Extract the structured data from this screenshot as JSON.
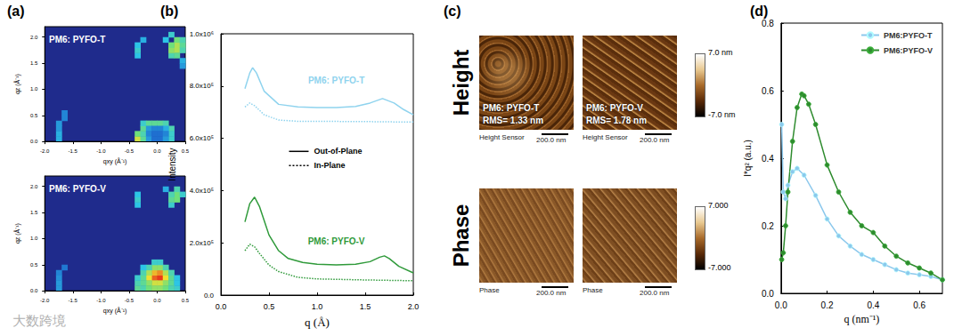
{
  "watermark": "大数跨境",
  "chart_data": [
    {
      "type": "heatmap",
      "panel": "(a)",
      "title": "PM6: PYFO-T",
      "xlabel": "qxy (Å⁻¹)",
      "ylabel": "qz (Å⁻¹)",
      "xlim": [
        -2,
        0.5
      ],
      "ylim": [
        0,
        2.2
      ],
      "xticks": [
        {
          "value": -2,
          "label": "-2.0"
        },
        -1.5,
        {
          "value": -1,
          "label": "-1.0"
        },
        -0.5,
        {
          "value": 0,
          "label": "0.0"
        },
        0.5
      ],
      "yticks": [
        {
          "value": 0,
          "label": "0.0"
        },
        0.5,
        {
          "value": 1,
          "label": "1.0"
        },
        1.5,
        {
          "value": 2,
          "label": "2.0"
        }
      ],
      "grid": false,
      "cell_size": 0.1,
      "clim": [
        0,
        1
      ],
      "cells": [
        [
          -0.4,
          0,
          0.75
        ],
        [
          -0.4,
          0.1,
          0.6
        ],
        [
          -0.3,
          0,
          0.55
        ],
        [
          -0.3,
          0.1,
          0.5
        ],
        [
          -0.3,
          0.2,
          0.55
        ],
        [
          -0.3,
          0.3,
          0.45
        ],
        [
          -0.2,
          0.3,
          0.55
        ],
        [
          -0.1,
          0.3,
          0.55
        ],
        [
          0,
          0.3,
          0.55
        ],
        [
          0.1,
          0.3,
          0.5
        ],
        [
          0.2,
          0.2,
          0.5
        ],
        [
          0.2,
          0.1,
          0.45
        ],
        [
          0.2,
          0,
          0.45
        ],
        [
          0.1,
          0.2,
          0.35
        ],
        [
          -0.2,
          0.2,
          0.3
        ],
        [
          -0.1,
          0.2,
          0.25
        ],
        [
          0,
          0.2,
          0.25
        ],
        [
          -0.2,
          0.1,
          0.25
        ],
        [
          -0.1,
          0.1,
          0.2
        ],
        [
          0,
          0.1,
          0.2
        ],
        [
          0.1,
          0.1,
          0.25
        ],
        [
          -0.2,
          0,
          0.3
        ],
        [
          -0.1,
          0,
          0.2
        ],
        [
          0,
          0,
          0.2
        ],
        [
          0.1,
          0,
          0.3
        ],
        [
          -1.8,
          0,
          0.35
        ],
        [
          -1.8,
          0.1,
          0.35
        ],
        [
          -1.8,
          0.2,
          0.3
        ],
        [
          -1.8,
          0.3,
          0.3
        ],
        [
          -1.7,
          0.4,
          0.25
        ],
        [
          -1.7,
          0.5,
          0.25
        ],
        [
          -0.4,
          1.6,
          0.4
        ],
        [
          -0.4,
          1.7,
          0.45
        ],
        [
          -0.4,
          1.8,
          0.4
        ],
        [
          -0.3,
          1.9,
          0.35
        ],
        [
          0.2,
          1.6,
          0.5
        ],
        [
          0.2,
          1.7,
          0.65
        ],
        [
          0.3,
          1.7,
          0.7
        ],
        [
          0.3,
          1.8,
          0.7
        ],
        [
          0.2,
          1.8,
          0.6
        ],
        [
          0.3,
          1.9,
          0.6
        ],
        [
          0.4,
          1.8,
          0.55
        ],
        [
          0.4,
          1.9,
          0.5
        ],
        [
          0.3,
          1.6,
          0.55
        ],
        [
          0.4,
          1.7,
          0.5
        ],
        [
          0.1,
          1.9,
          0.4
        ],
        [
          0.2,
          2,
          0.45
        ],
        [
          0.4,
          1.5,
          0.35
        ],
        [
          0.4,
          1.4,
          0.3
        ]
      ]
    },
    {
      "type": "heatmap",
      "title": "PM6: PYFO-V",
      "xlabel": "qxy (Å⁻¹)",
      "ylabel": "qz (Å⁻¹)",
      "xlim": [
        -2,
        0.5
      ],
      "ylim": [
        0,
        2.2
      ],
      "xticks": [
        {
          "value": -2,
          "label": "-2.0"
        },
        -1.5,
        {
          "value": -1,
          "label": "-1.0"
        },
        -0.5,
        {
          "value": 0,
          "label": "0.0"
        },
        0.5
      ],
      "yticks": [
        {
          "value": 0,
          "label": "0.0"
        },
        0.5,
        {
          "value": 1,
          "label": "1.0"
        },
        1.5,
        {
          "value": 2,
          "label": "2.0"
        }
      ],
      "grid": false,
      "cell_size": 0.1,
      "clim": [
        0,
        1
      ],
      "cells": [
        [
          -0.1,
          0.2,
          0.95
        ],
        [
          0,
          0.2,
          1
        ],
        [
          -0.1,
          0.3,
          0.85
        ],
        [
          0,
          0.3,
          0.9
        ],
        [
          -0.2,
          0.2,
          0.8
        ],
        [
          0.1,
          0.2,
          0.8
        ],
        [
          -0.2,
          0.3,
          0.7
        ],
        [
          0.1,
          0.3,
          0.7
        ],
        [
          -0.1,
          0.1,
          0.75
        ],
        [
          0,
          0.1,
          0.75
        ],
        [
          -0.2,
          0.1,
          0.65
        ],
        [
          0.1,
          0.1,
          0.65
        ],
        [
          -0.1,
          0.4,
          0.65
        ],
        [
          0,
          0.4,
          0.65
        ],
        [
          -0.3,
          0.2,
          0.55
        ],
        [
          0.2,
          0.2,
          0.55
        ],
        [
          -0.3,
          0.1,
          0.55
        ],
        [
          0.2,
          0.1,
          0.55
        ],
        [
          -0.3,
          0.3,
          0.5
        ],
        [
          0.2,
          0.3,
          0.5
        ],
        [
          -0.2,
          0.4,
          0.5
        ],
        [
          0.1,
          0.4,
          0.5
        ],
        [
          -0.1,
          0.5,
          0.45
        ],
        [
          0,
          0.5,
          0.45
        ],
        [
          -0.4,
          0,
          0.55
        ],
        [
          -0.4,
          0.1,
          0.5
        ],
        [
          -0.4,
          0.2,
          0.45
        ],
        [
          -0.3,
          0.4,
          0.4
        ],
        [
          0.3,
          0,
          0.45
        ],
        [
          0.3,
          0.1,
          0.4
        ],
        [
          0.3,
          0.2,
          0.4
        ],
        [
          -0.3,
          0,
          0.5
        ],
        [
          -0.2,
          0,
          0.6
        ],
        [
          -0.1,
          0,
          0.65
        ],
        [
          0,
          0,
          0.65
        ],
        [
          0.1,
          0,
          0.6
        ],
        [
          0.2,
          0,
          0.5
        ],
        [
          -1.8,
          0,
          0.3
        ],
        [
          -1.8,
          0.1,
          0.3
        ],
        [
          -1.8,
          0.2,
          0.28
        ],
        [
          -1.8,
          0.3,
          0.25
        ],
        [
          -1.7,
          0.4,
          0.22
        ],
        [
          -0.4,
          1.6,
          0.4
        ],
        [
          -0.4,
          1.7,
          0.45
        ],
        [
          -0.4,
          1.8,
          0.4
        ],
        [
          0.2,
          1.6,
          0.45
        ],
        [
          0.2,
          1.7,
          0.55
        ],
        [
          0.3,
          1.7,
          0.6
        ],
        [
          0.3,
          1.8,
          0.6
        ],
        [
          0.2,
          1.8,
          0.5
        ],
        [
          0.3,
          1.9,
          0.5
        ],
        [
          0.4,
          1.8,
          0.45
        ],
        [
          0.1,
          1.9,
          0.35
        ]
      ]
    },
    {
      "type": "line",
      "panel": "(b)",
      "xlabel": "q (Å)",
      "ylabel": "Intensity",
      "xlim": [
        0,
        2
      ],
      "ylim": [
        0,
        1000000
      ],
      "xticks": [
        {
          "value": 0,
          "label": "0.0"
        },
        0.5,
        {
          "value": 1,
          "label": "1.0"
        },
        1.5,
        {
          "value": 2,
          "label": "2.0"
        }
      ],
      "yticks": [
        {
          "value": 0,
          "label": "0.0"
        },
        {
          "value": 200000,
          "label": "2.0x10⁵"
        },
        {
          "value": 400000,
          "label": "4.0x10⁵"
        },
        {
          "value": 600000,
          "label": "6.0x10⁵"
        },
        {
          "value": 800000,
          "label": "8.0x10⁵"
        },
        {
          "value": 1000000,
          "label": "1.0x10⁶"
        }
      ],
      "grid": false,
      "legend": "center",
      "series": [
        {
          "profile": "Out-of-Plane",
          "color": "#8fd3ee",
          "line_style": "solid",
          "x": [
            0.25,
            0.3,
            0.33,
            0.37,
            0.45,
            0.6,
            0.8,
            1.0,
            1.2,
            1.4,
            1.55,
            1.68,
            1.8,
            1.9,
            2.0
          ],
          "values": [
            790000,
            850000,
            870000,
            850000,
            780000,
            730000,
            720000,
            718000,
            718000,
            722000,
            735000,
            752000,
            735000,
            710000,
            690000
          ]
        },
        {
          "profile": "In-Plane",
          "color": "#8fd3ee",
          "line_style": "dotted",
          "x": [
            0.25,
            0.3,
            0.35,
            0.45,
            0.6,
            0.8,
            1.0,
            1.5,
            2.0
          ],
          "values": [
            720000,
            735000,
            725000,
            690000,
            670000,
            665000,
            665000,
            664000,
            662000
          ]
        },
        {
          "profile": "Out-of-Plane",
          "color": "#2f9a3a",
          "line_style": "solid",
          "x": [
            0.25,
            0.3,
            0.35,
            0.4,
            0.5,
            0.6,
            0.7,
            0.85,
            1.0,
            1.2,
            1.4,
            1.55,
            1.65,
            1.7,
            1.75,
            1.85,
            2.0
          ],
          "values": [
            280000,
            350000,
            375000,
            340000,
            230000,
            170000,
            140000,
            125000,
            118000,
            116000,
            118000,
            128000,
            145000,
            150000,
            140000,
            110000,
            85000
          ]
        },
        {
          "profile": "In-Plane",
          "color": "#2f9a3a",
          "line_style": "dotted",
          "x": [
            0.25,
            0.3,
            0.35,
            0.4,
            0.5,
            0.6,
            0.8,
            1.0,
            1.5,
            2.0
          ],
          "values": [
            170000,
            195000,
            185000,
            160000,
            115000,
            90000,
            68000,
            62000,
            58000,
            55000
          ]
        }
      ],
      "annotations": [
        {
          "text": "PM6: PYFO-T",
          "x": 1.2,
          "y": 820000,
          "color": "#8fd3ee"
        },
        {
          "text": "PM6: PYFO-V",
          "x": 1.2,
          "y": 205000,
          "color": "#2f9a3a"
        }
      ]
    },
    {
      "type": "line",
      "panel": "(d)",
      "xlabel": "q (nm⁻¹)",
      "ylabel": "I*q² (a.u.)",
      "xlim": [
        0,
        0.7
      ],
      "ylim": [
        0,
        0.8
      ],
      "xticks": [
        {
          "value": 0,
          "label": "0.0"
        },
        0.2,
        0.4,
        0.6
      ],
      "yticks": [
        {
          "value": 0,
          "label": "0.0"
        },
        0.2,
        0.4,
        0.6,
        0.8
      ],
      "grid": false,
      "legend": "upper right",
      "series": [
        {
          "name": "PM6:PYFO-T",
          "color": "#8cc8ec",
          "marker": "circle",
          "line_style": "solid",
          "x": [
            0.003,
            0.01,
            0.02,
            0.03,
            0.05,
            0.07,
            0.1,
            0.15,
            0.2,
            0.25,
            0.3,
            0.35,
            0.4,
            0.45,
            0.5,
            0.55,
            0.6,
            0.65,
            0.7
          ],
          "values": [
            0.5,
            0.3,
            0.28,
            0.32,
            0.36,
            0.37,
            0.35,
            0.29,
            0.22,
            0.17,
            0.14,
            0.115,
            0.1,
            0.085,
            0.07,
            0.06,
            0.055,
            0.05,
            0.04
          ]
        },
        {
          "name": "PM6:PYFO-V",
          "color": "#2e8b2e",
          "marker": "circle",
          "line_style": "solid",
          "x": [
            0.003,
            0.01,
            0.02,
            0.03,
            0.05,
            0.07,
            0.09,
            0.1,
            0.12,
            0.15,
            0.2,
            0.25,
            0.3,
            0.35,
            0.4,
            0.45,
            0.5,
            0.55,
            0.6,
            0.65,
            0.7
          ],
          "values": [
            0.1,
            0.12,
            0.2,
            0.3,
            0.45,
            0.55,
            0.59,
            0.585,
            0.56,
            0.5,
            0.38,
            0.3,
            0.24,
            0.2,
            0.18,
            0.14,
            0.11,
            0.09,
            0.075,
            0.06,
            0.04
          ]
        }
      ]
    }
  ],
  "afm": {
    "panel": "(c)",
    "rows": [
      {
        "label": "Height",
        "channel": "Height Sensor",
        "colorbar": {
          "max": "7.0 nm",
          "min": "-7.0 nm"
        },
        "images": [
          {
            "label": "PM6: PYFO-T",
            "rms": "RMS= 1.33 nm",
            "scale_bar": "200.0 nm"
          },
          {
            "label": "PM6: PYFO-V",
            "rms": "RMS= 1.78 nm",
            "scale_bar": "200.0 nm"
          }
        ]
      },
      {
        "label": "Phase",
        "channel": "Phase",
        "colorbar": {
          "max": "7.000",
          "min": "-7.000"
        },
        "images": [
          {
            "scale_bar": "200.0 nm"
          },
          {
            "scale_bar": "200.0 nm"
          }
        ]
      }
    ]
  }
}
